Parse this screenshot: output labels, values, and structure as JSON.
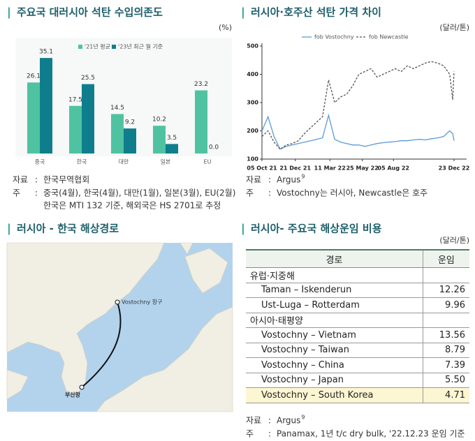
{
  "chart_data": [
    {
      "type": "bar",
      "title": "주요국 대러시아 석탄 수입의존도",
      "y_label": "(%)",
      "categories": [
        "중국",
        "한국",
        "대만",
        "일본",
        "EU"
      ],
      "series": [
        {
          "name": "'21년 평균",
          "color": "#4fc3a1",
          "values": [
            26.1,
            17.5,
            14.5,
            10.2,
            23.2
          ],
          "value_labels": [
            "26.1",
            "17.5",
            "14.5",
            "10.2",
            "23.2"
          ]
        },
        {
          "name": "'23년 최근 월 기준",
          "color": "#0f7e8c",
          "values": [
            35.1,
            25.5,
            9.2,
            3.5,
            0
          ],
          "value_labels": [
            "35.1",
            "25.5",
            "9.2",
            "3.5",
            "0.0"
          ]
        }
      ],
      "ylim": [
        0,
        40
      ],
      "source": {
        "label": "자료",
        "text": "한국무역협회"
      },
      "note": {
        "label": "주",
        "lines": [
          "중국(4월), 한국(4월), 대만(1월), 일본(3월), EU(2월)",
          "한국은 MTI 132 기준, 해외국은 HS 2701로 추정"
        ]
      }
    },
    {
      "type": "line",
      "title": "러시아·호주산 석탄 가격 차이",
      "y_label": "(달러/톤)",
      "x": [
        "2021-10-05",
        "2021-10-19",
        "2021-11-02",
        "2021-11-16",
        "2021-11-30",
        "2021-12-14",
        "2021-12-28",
        "2022-01-11",
        "2022-01-25",
        "2022-02-08",
        "2022-02-22",
        "2022-03-08",
        "2022-03-22",
        "2022-04-05",
        "2022-04-19",
        "2022-05-03",
        "2022-05-17",
        "2022-05-31",
        "2022-06-14",
        "2022-06-28",
        "2022-07-12",
        "2022-07-26",
        "2022-08-09",
        "2022-08-23",
        "2022-09-06",
        "2022-09-20",
        "2022-10-04",
        "2022-10-18",
        "2022-11-01",
        "2022-11-15",
        "2022-11-29",
        "2022-12-13",
        "2022-12-20",
        "2022-12-23"
      ],
      "series": [
        {
          "name": "fob Vostochny",
          "color": "#5b9bd5",
          "line_style": "solid",
          "values": [
            200,
            250,
            180,
            135,
            145,
            150,
            155,
            160,
            165,
            170,
            175,
            255,
            170,
            160,
            155,
            150,
            150,
            145,
            150,
            155,
            158,
            160,
            162,
            165,
            165,
            168,
            170,
            168,
            172,
            175,
            180,
            200,
            190,
            165
          ]
        },
        {
          "name": "fob Newcastle",
          "color": "#555555",
          "line_style": "dashed",
          "values": [
            180,
            200,
            160,
            135,
            150,
            155,
            165,
            190,
            210,
            230,
            250,
            380,
            300,
            320,
            330,
            360,
            400,
            410,
            420,
            390,
            400,
            410,
            420,
            410,
            430,
            420,
            430,
            440,
            445,
            440,
            430,
            400,
            310,
            410
          ]
        }
      ],
      "xlim": [
        "2021-10-05",
        "2022-12-23"
      ],
      "xticks": [
        {
          "value": "2021-10-05",
          "label": "05 Oct 21"
        },
        {
          "value": "2021-12-21",
          "label": "21 Dec 21"
        },
        {
          "value": "2022-03-11",
          "label": "11 Mar 22"
        },
        {
          "value": "2022-05-25",
          "label": "25 May 22"
        },
        {
          "value": "2022-08-05",
          "label": "05 Aug 22"
        },
        {
          "value": "2022-12-23",
          "label": "23 Dec 22"
        }
      ],
      "ylim": [
        100,
        500
      ],
      "yticks": [
        100,
        200,
        300,
        400,
        500
      ],
      "grid": false,
      "source": {
        "label": "자료",
        "text": "Argus",
        "sup": "9"
      },
      "note": {
        "label": "주",
        "lines": [
          "Vostochny는 러시아, Newcastle은 호주"
        ]
      }
    }
  ],
  "route_map": {
    "title": "러시아 - 한국 해상경로",
    "ports": [
      "Vostochny 항구",
      "부산항"
    ]
  },
  "freight_table": {
    "title": "러시아- 주요국 해상운임 비용",
    "unit": "(달러/톤)",
    "header": [
      "경로",
      "운임"
    ],
    "groups": [
      {
        "name": "유럽·지중해",
        "rows": [
          {
            "route": "Taman – Iskenderun",
            "cost": "12.26"
          },
          {
            "route": "Ust-Luga – Rotterdam",
            "cost": "9.96"
          }
        ]
      },
      {
        "name": "아시아·태평양",
        "rows": [
          {
            "route": "Vostochny – Vietnam",
            "cost": "13.56"
          },
          {
            "route": "Vostochny – Taiwan",
            "cost": "8.79"
          },
          {
            "route": "Vostochny – China",
            "cost": "7.39"
          },
          {
            "route": "Vostochny – Japan",
            "cost": "5.50"
          },
          {
            "route": "Vostochny – South Korea",
            "cost": "4.71",
            "highlight": true
          }
        ]
      }
    ],
    "source": {
      "label": "자료",
      "text": "Argus",
      "sup": "9"
    },
    "note": {
      "label": "주",
      "lines": [
        "Panamax, 1년 t/c dry bulk, '22.12.23 운임 기준"
      ]
    }
  }
}
